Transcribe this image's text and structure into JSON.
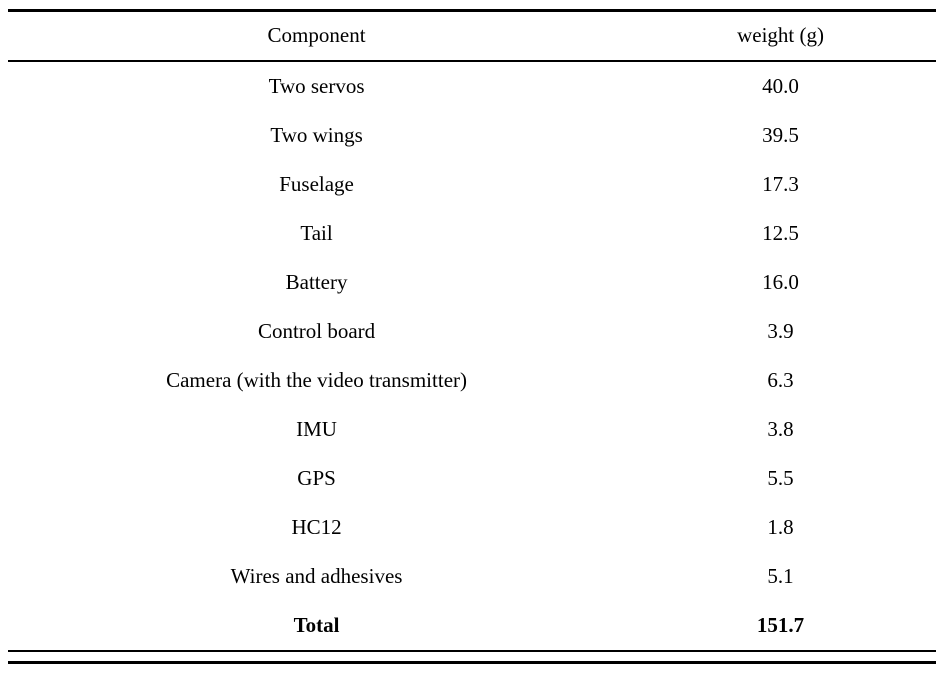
{
  "table": {
    "headers": {
      "component": "Component",
      "weight": "weight (g)"
    },
    "rows": [
      {
        "component": "Two servos",
        "weight": "40.0"
      },
      {
        "component": "Two wings",
        "weight": "39.5"
      },
      {
        "component": "Fuselage",
        "weight": "17.3"
      },
      {
        "component": "Tail",
        "weight": "12.5"
      },
      {
        "component": "Battery",
        "weight": "16.0"
      },
      {
        "component": "Control board",
        "weight": "3.9"
      },
      {
        "component": "Camera (with the video transmitter)",
        "weight": "6.3"
      },
      {
        "component": "IMU",
        "weight": "3.8"
      },
      {
        "component": "GPS",
        "weight": "5.5"
      },
      {
        "component": "HC12",
        "weight": "1.8"
      },
      {
        "component": "Wires and adhesives",
        "weight": "5.1"
      }
    ],
    "total": {
      "component": "Total",
      "weight": "151.7"
    }
  },
  "chart_data": {
    "type": "table",
    "columns": [
      "Component",
      "weight (g)"
    ],
    "rows": [
      [
        "Two servos",
        40.0
      ],
      [
        "Two wings",
        39.5
      ],
      [
        "Fuselage",
        17.3
      ],
      [
        "Tail",
        12.5
      ],
      [
        "Battery",
        16.0
      ],
      [
        "Control board",
        3.9
      ],
      [
        "Camera (with the video transmitter)",
        6.3
      ],
      [
        "IMU",
        3.8
      ],
      [
        "GPS",
        5.5
      ],
      [
        "HC12",
        1.8
      ],
      [
        "Wires and adhesives",
        5.1
      ]
    ],
    "total_row": [
      "Total",
      151.7
    ]
  }
}
